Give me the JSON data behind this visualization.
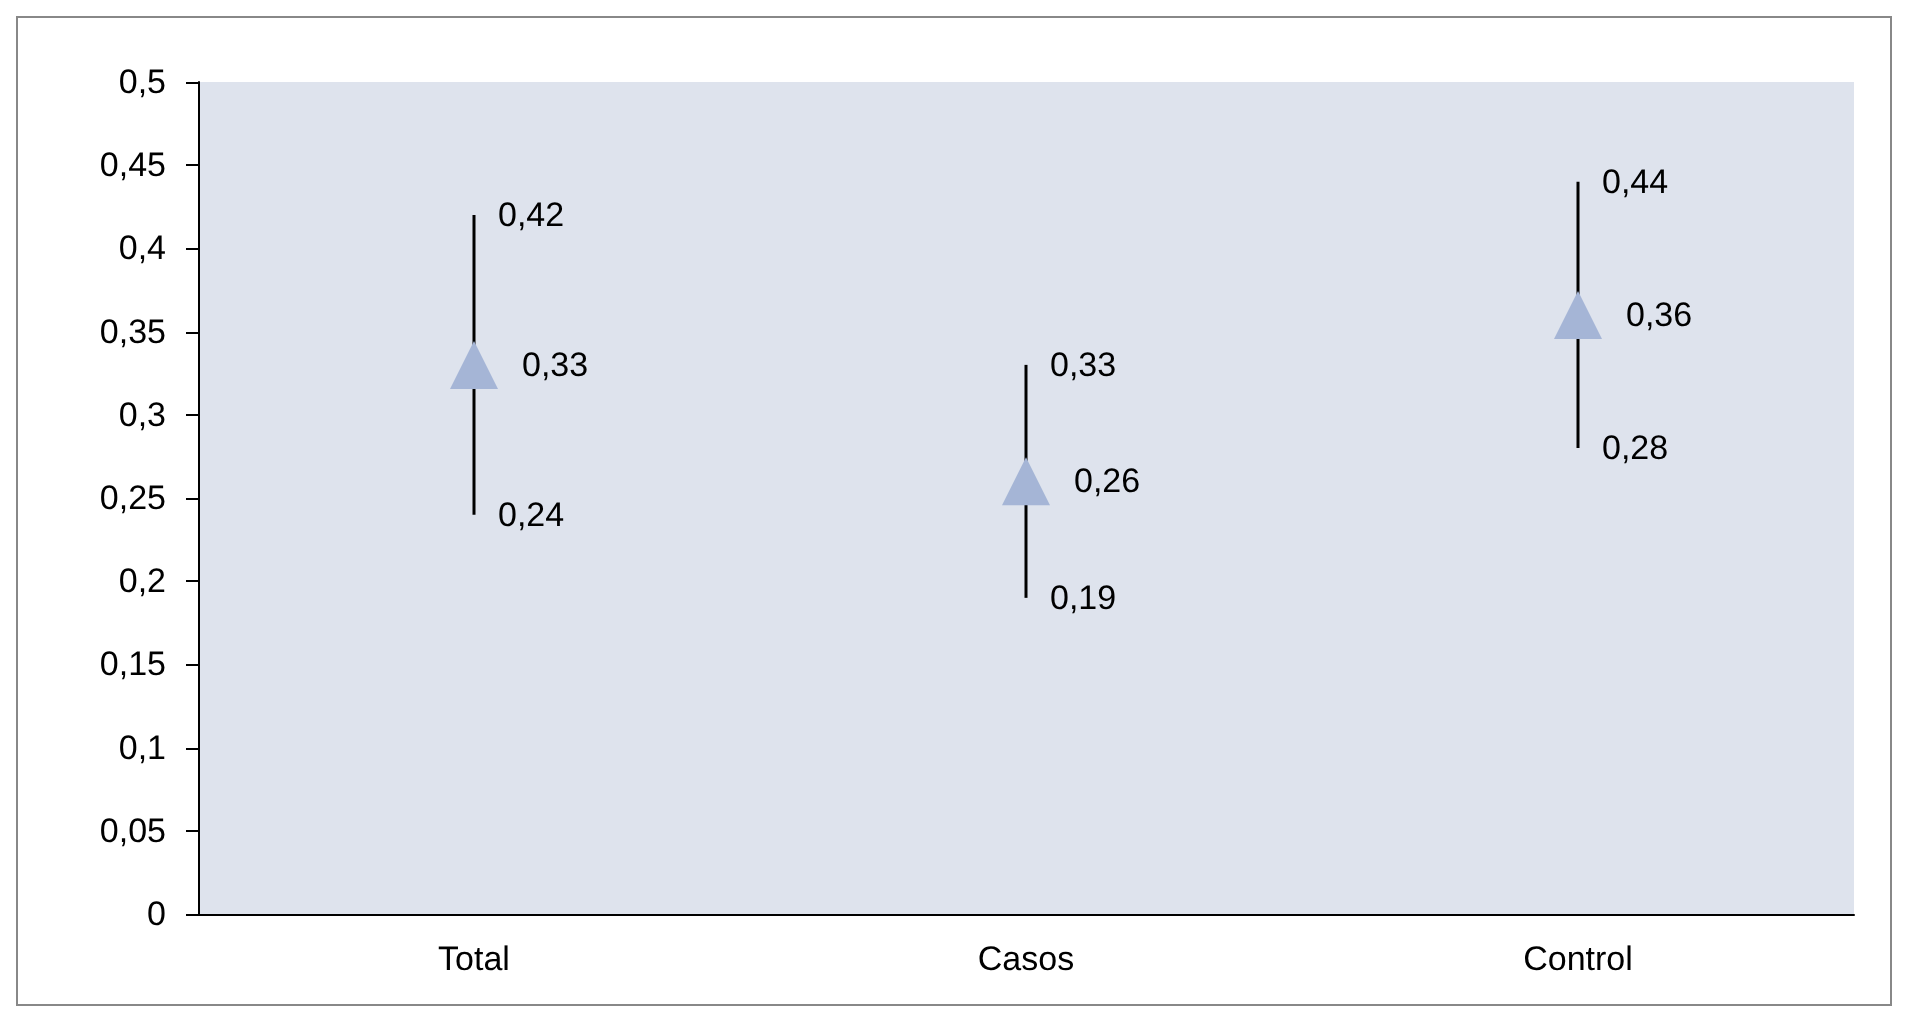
{
  "chart_data": {
    "type": "scatter",
    "categories": [
      "Total",
      "Casos",
      "Control"
    ],
    "series": [
      {
        "color": "#a5b5d6",
        "values": [
          0.33,
          0.26,
          0.36
        ],
        "errors": [
          [
            0.24,
            0.42
          ],
          [
            0.19,
            0.33
          ],
          [
            0.28,
            0.44
          ]
        ],
        "value_labels": [
          "0,33",
          "0,26",
          "0,36"
        ]
      }
    ],
    "annotations": [
      {
        "text": "0,42",
        "x": "Total",
        "y": 0.42
      },
      {
        "text": "0,24",
        "x": "Total",
        "y": 0.24
      },
      {
        "text": "0,33",
        "x": "Casos",
        "y": 0.33
      },
      {
        "text": "0,19",
        "x": "Casos",
        "y": 0.19
      },
      {
        "text": "0,44",
        "x": "Control",
        "y": 0.44
      },
      {
        "text": "0,28",
        "x": "Control",
        "y": 0.28
      }
    ],
    "ylim": [
      0,
      0.5
    ],
    "yticks": [
      {
        "value": 0,
        "label": "0"
      },
      {
        "value": 0.05,
        "label": "0,05"
      },
      {
        "value": 0.1,
        "label": "0,1"
      },
      {
        "value": 0.15,
        "label": "0,15"
      },
      {
        "value": 0.2,
        "label": "0,2"
      },
      {
        "value": 0.25,
        "label": "0,25"
      },
      {
        "value": 0.3,
        "label": "0,3"
      },
      {
        "value": 0.35,
        "label": "0,35"
      },
      {
        "value": 0.4,
        "label": "0,4"
      },
      {
        "value": 0.45,
        "label": "0,45"
      },
      {
        "value": 0.5,
        "label": "0,5"
      }
    ],
    "marker": "triangle",
    "grid": false
  }
}
